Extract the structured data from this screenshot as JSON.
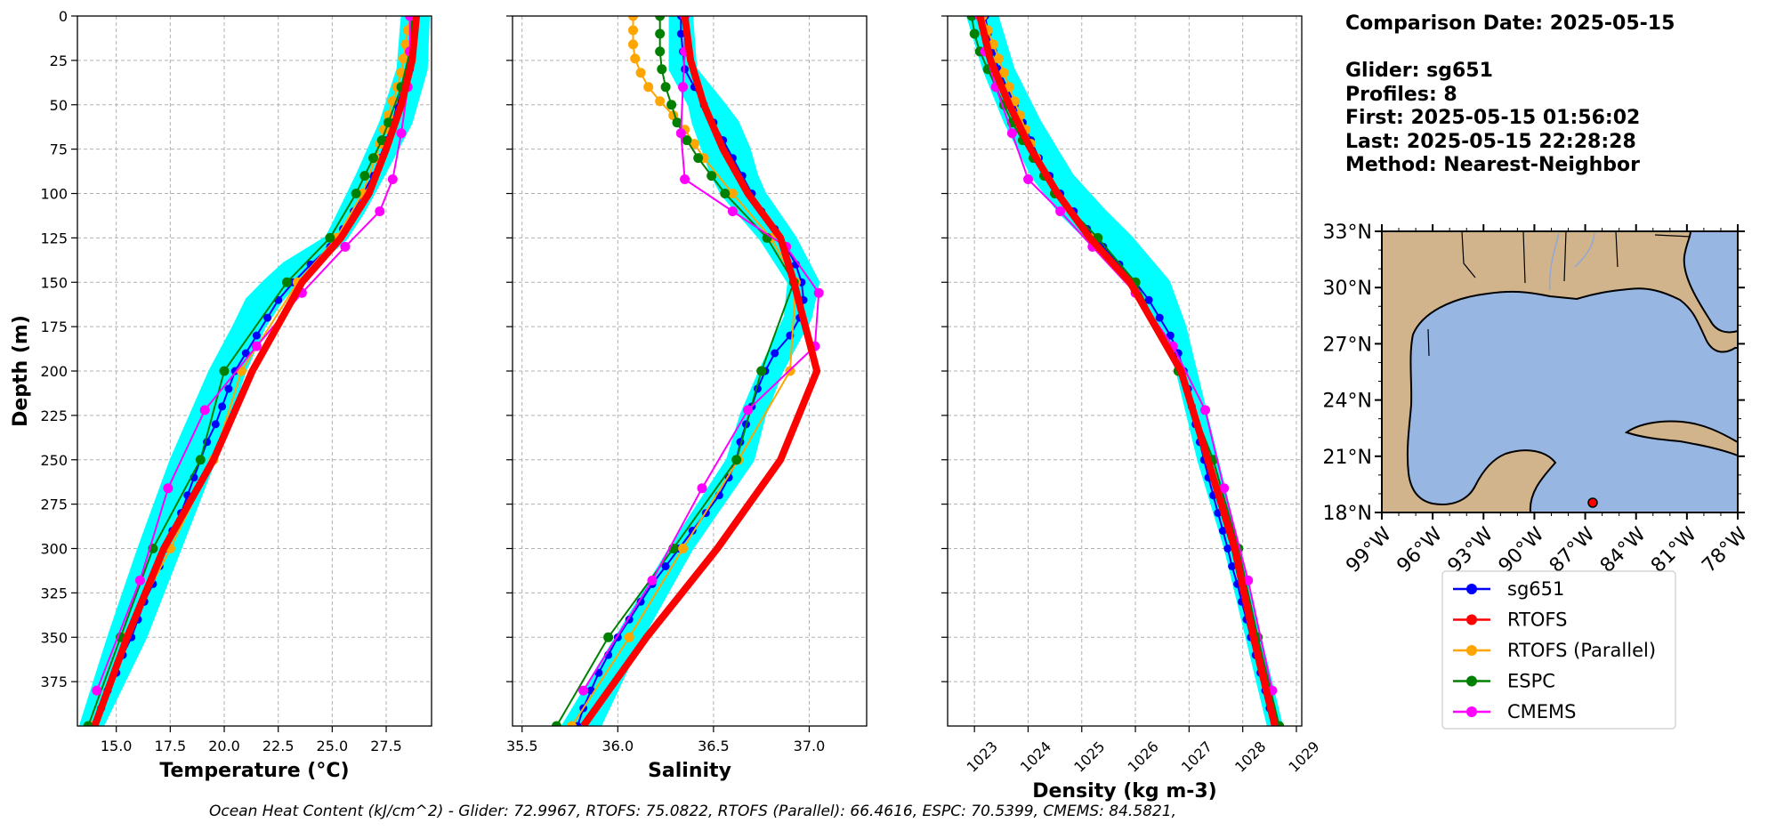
{
  "info": {
    "comparison_date": "Comparison Date: 2025-05-15",
    "glider": "Glider: sg651",
    "profiles": "Profiles: 8",
    "first": "First: 2025-05-15 01:56:02",
    "last": "Last: 2025-05-15 22:28:28",
    "method": "Method: Nearest-Neighbor"
  },
  "ohc_text": "Ocean Heat Content (kJ/cm^2) - Glider: 72.9967,  RTOFS: 75.0822,  RTOFS (Parallel): 66.4616,  ESPC: 70.5399,  CMEMS: 84.5821,",
  "map": {
    "lat_ticks": [
      "33°N",
      "30°N",
      "27°N",
      "24°N",
      "21°N",
      "18°N"
    ],
    "lon_ticks": [
      "99°W",
      "96°W",
      "93°W",
      "90°W",
      "87°W",
      "84°W",
      "81°W",
      "78°W"
    ],
    "land_color": "#d2b48c",
    "ocean_color": "#97b6e1"
  },
  "legend": [
    "sg651",
    "RTOFS",
    "RTOFS (Parallel)",
    "ESPC",
    "CMEMS"
  ],
  "chart_data": {
    "type": "line",
    "ylabel": "Depth (m)",
    "ylim": [
      400,
      0
    ],
    "yticks": [
      0,
      25,
      50,
      75,
      100,
      125,
      150,
      175,
      200,
      225,
      250,
      275,
      300,
      325,
      350,
      375
    ],
    "ytick_labels": [
      "0",
      "25",
      "50",
      "75",
      "100",
      "125",
      "150",
      "175",
      "200",
      "225",
      "250",
      "275",
      "300",
      "325",
      "350",
      "375"
    ],
    "grid": true,
    "colors": {
      "sg651": "#0000ff",
      "RTOFS": "#ff0000",
      "RTOFS (Parallel)": "#ffa500",
      "ESPC": "#008000",
      "CMEMS": "#ff00ff",
      "envelope": "#00ffff"
    },
    "panels": [
      {
        "xlabel": "Temperature",
        "xlabel_unit": "(°C)",
        "xlim": [
          13.2,
          29.6
        ],
        "xticks": [
          15.0,
          17.5,
          20.0,
          22.5,
          25.0,
          27.5
        ],
        "xtick_labels": [
          "15.0",
          "17.5",
          "20.0",
          "22.5",
          "25.0",
          "27.5"
        ],
        "envelope": {
          "depth": [
            0,
            30,
            60,
            90,
            110,
            125,
            140,
            150,
            160,
            175,
            200,
            250,
            300,
            350,
            400
          ],
          "low": [
            28.3,
            28.1,
            27.3,
            26.2,
            25.4,
            24.8,
            22.8,
            21.9,
            21.1,
            20.5,
            19.4,
            17.6,
            16.1,
            14.7,
            13.4
          ],
          "high": [
            29.4,
            29.3,
            28.6,
            27.3,
            26.4,
            25.6,
            24.2,
            23.3,
            22.6,
            21.8,
            20.9,
            19.5,
            17.9,
            16.3,
            14.3
          ]
        },
        "series": [
          {
            "name": "sg651",
            "depth": [
              0,
              10,
              20,
              30,
              40,
              50,
              60,
              70,
              80,
              90,
              100,
              110,
              120,
              130,
              140,
              150,
              160,
              170,
              180,
              190,
              200,
              210,
              220,
              230,
              240,
              250,
              260,
              270,
              280,
              290,
              300,
              310,
              320,
              330,
              340,
              350,
              360,
              370,
              380,
              390,
              400
            ],
            "values": [
              28.8,
              28.8,
              28.7,
              28.6,
              28.3,
              28.0,
              27.8,
              27.5,
              27.2,
              26.9,
              26.4,
              26.0,
              25.5,
              24.9,
              24.0,
              23.2,
              22.5,
              22.0,
              21.5,
              21.0,
              20.5,
              20.2,
              19.9,
              19.6,
              19.2,
              18.9,
              18.6,
              18.3,
              18.0,
              17.6,
              17.3,
              17.0,
              16.7,
              16.3,
              16.0,
              15.7,
              15.3,
              15.0,
              14.6,
              14.3,
              14.0
            ]
          },
          {
            "name": "RTOFS",
            "depth": [
              0,
              25,
              50,
              75,
              100,
              125,
              150,
              200,
              250,
              300,
              350,
              400
            ],
            "values": [
              28.9,
              28.7,
              28.2,
              27.5,
              26.7,
              25.4,
              23.6,
              21.3,
              19.5,
              17.2,
              15.5,
              14.0
            ]
          },
          {
            "name": "RTOFS (Parallel)",
            "depth": [
              0,
              8,
              16,
              24,
              32,
              40,
              48,
              56,
              64,
              72,
              80,
              100,
              125,
              150,
              200,
              250,
              300,
              350,
              400
            ],
            "values": [
              28.6,
              28.5,
              28.4,
              28.3,
              28.2,
              28.0,
              27.8,
              27.6,
              27.4,
              27.2,
              27.0,
              26.4,
              25.2,
              23.4,
              20.8,
              19.5,
              17.5,
              15.4,
              13.9
            ]
          },
          {
            "name": "ESPC",
            "depth": [
              0,
              20,
              40,
              60,
              70,
              80,
              90,
              100,
              125,
              150,
              200,
              250,
              300,
              350,
              400
            ],
            "values": [
              28.7,
              28.6,
              28.2,
              27.6,
              27.3,
              26.9,
              26.5,
              26.1,
              24.9,
              22.9,
              20.0,
              18.9,
              16.7,
              15.2,
              13.7
            ]
          },
          {
            "name": "CMEMS",
            "depth": [
              0,
              20,
              40,
              66,
              92,
              110,
              130,
              156,
              186,
              222,
              266,
              318,
              380
            ],
            "values": [
              28.6,
              28.6,
              28.5,
              28.2,
              27.8,
              27.2,
              25.6,
              23.6,
              21.5,
              19.1,
              17.4,
              16.1,
              14.1
            ]
          }
        ]
      },
      {
        "xlabel": "Salinity",
        "xlim": [
          35.45,
          37.3
        ],
        "xticks": [
          35.5,
          36.0,
          36.5,
          37.0
        ],
        "xtick_labels": [
          "35.5",
          "36.0",
          "36.5",
          "37.0"
        ],
        "envelope": {
          "depth": [
            0,
            30,
            50,
            60,
            75,
            90,
            100,
            125,
            150,
            170,
            200,
            225,
            250,
            300,
            350,
            400
          ],
          "low": [
            36.28,
            36.28,
            36.38,
            36.4,
            36.45,
            36.5,
            36.55,
            36.75,
            36.9,
            36.88,
            36.75,
            36.65,
            36.58,
            36.28,
            36.0,
            35.72
          ],
          "high": [
            36.38,
            36.4,
            36.55,
            36.62,
            36.68,
            36.72,
            36.76,
            36.92,
            37.04,
            37.0,
            36.85,
            36.76,
            36.7,
            36.38,
            36.12,
            35.9
          ]
        },
        "series": [
          {
            "name": "sg651",
            "depth": [
              0,
              10,
              20,
              30,
              40,
              50,
              60,
              70,
              80,
              90,
              100,
              110,
              120,
              130,
              140,
              150,
              160,
              170,
              180,
              190,
              200,
              210,
              220,
              230,
              240,
              250,
              260,
              270,
              280,
              290,
              300,
              310,
              320,
              330,
              340,
              350,
              360,
              370,
              380,
              390,
              400
            ],
            "values": [
              36.33,
              36.33,
              36.34,
              36.35,
              36.4,
              36.45,
              36.5,
              36.55,
              36.6,
              36.65,
              36.7,
              36.75,
              36.82,
              36.88,
              36.93,
              36.96,
              36.97,
              36.95,
              36.9,
              36.82,
              36.77,
              36.73,
              36.7,
              36.67,
              36.64,
              36.62,
              36.58,
              36.53,
              36.46,
              36.39,
              36.32,
              36.25,
              36.18,
              36.12,
              36.06,
              36.0,
              35.95,
              35.9,
              35.86,
              35.82,
              35.79
            ]
          },
          {
            "name": "RTOFS",
            "depth": [
              0,
              25,
              50,
              75,
              100,
              125,
              150,
              200,
              250,
              300,
              350,
              400
            ],
            "values": [
              36.35,
              36.38,
              36.45,
              36.55,
              36.68,
              36.85,
              36.92,
              37.04,
              36.85,
              36.52,
              36.15,
              35.82
            ]
          },
          {
            "name": "RTOFS (Parallel)",
            "depth": [
              0,
              8,
              16,
              24,
              32,
              40,
              48,
              56,
              64,
              72,
              80,
              100,
              125,
              150,
              200,
              250,
              300,
              350,
              400
            ],
            "values": [
              36.08,
              36.08,
              36.08,
              36.09,
              36.12,
              36.16,
              36.22,
              36.29,
              36.35,
              36.4,
              36.45,
              36.6,
              36.8,
              36.93,
              36.9,
              36.63,
              36.34,
              36.06,
              35.76
            ]
          },
          {
            "name": "ESPC",
            "depth": [
              0,
              10,
              20,
              30,
              40,
              50,
              60,
              70,
              80,
              90,
              100,
              125,
              150,
              200,
              250,
              300,
              350,
              400
            ],
            "values": [
              36.22,
              36.22,
              36.22,
              36.23,
              36.25,
              36.28,
              36.31,
              36.36,
              36.42,
              36.49,
              36.56,
              36.78,
              36.92,
              36.75,
              36.62,
              36.29,
              35.95,
              35.68
            ]
          },
          {
            "name": "CMEMS",
            "depth": [
              0,
              20,
              40,
              66,
              92,
              110,
              130,
              156,
              186,
              222,
              266,
              318,
              380
            ],
            "values": [
              36.35,
              36.35,
              36.34,
              36.33,
              36.35,
              36.6,
              36.88,
              37.05,
              37.03,
              36.68,
              36.44,
              36.18,
              35.82
            ]
          }
        ]
      },
      {
        "xlabel": "Density (kg m-3)",
        "xlim": [
          1022.5,
          1029.1
        ],
        "xticks": [
          1023,
          1024,
          1025,
          1026,
          1027,
          1028,
          1029
        ],
        "xtick_labels": [
          "1023",
          "1024",
          "1025",
          "1026",
          "1027",
          "1028",
          "1029"
        ],
        "envelope": {
          "depth": [
            0,
            30,
            60,
            90,
            110,
            125,
            150,
            175,
            200,
            250,
            300,
            350,
            400
          ],
          "low": [
            1022.9,
            1023.2,
            1023.6,
            1024.1,
            1024.6,
            1025.1,
            1025.9,
            1026.5,
            1026.8,
            1027.2,
            1027.7,
            1028.1,
            1028.5
          ],
          "high": [
            1023.4,
            1023.7,
            1024.2,
            1024.8,
            1025.4,
            1025.9,
            1026.6,
            1026.9,
            1027.1,
            1027.5,
            1027.9,
            1028.3,
            1028.7
          ]
        },
        "series": [
          {
            "name": "sg651",
            "depth": [
              0,
              10,
              20,
              30,
              40,
              50,
              60,
              70,
              80,
              90,
              100,
              110,
              120,
              130,
              140,
              150,
              160,
              170,
              180,
              190,
              200,
              210,
              220,
              230,
              240,
              250,
              260,
              270,
              280,
              290,
              300,
              310,
              320,
              330,
              340,
              350,
              360,
              370,
              380,
              390,
              400
            ],
            "values": [
              1023.2,
              1023.25,
              1023.35,
              1023.45,
              1023.6,
              1023.75,
              1023.9,
              1024.05,
              1024.2,
              1024.4,
              1024.6,
              1024.85,
              1025.1,
              1025.4,
              1025.7,
              1026.0,
              1026.25,
              1026.45,
              1026.65,
              1026.8,
              1026.9,
              1026.98,
              1027.05,
              1027.12,
              1027.2,
              1027.28,
              1027.36,
              1027.45,
              1027.54,
              1027.63,
              1027.72,
              1027.8,
              1027.9,
              1027.98,
              1028.07,
              1028.15,
              1028.24,
              1028.33,
              1028.42,
              1028.5,
              1028.6
            ]
          },
          {
            "name": "RTOFS",
            "depth": [
              0,
              25,
              50,
              75,
              100,
              125,
              150,
              200,
              250,
              300,
              350,
              400
            ],
            "values": [
              1023.1,
              1023.3,
              1023.65,
              1024.05,
              1024.55,
              1025.15,
              1025.9,
              1026.85,
              1027.35,
              1027.85,
              1028.2,
              1028.6
            ]
          },
          {
            "name": "RTOFS (Parallel)",
            "depth": [
              0,
              8,
              16,
              24,
              32,
              40,
              48,
              56,
              64,
              72,
              80,
              100,
              125,
              150,
              200,
              250,
              300,
              350,
              400
            ],
            "values": [
              1023.15,
              1023.25,
              1023.35,
              1023.45,
              1023.55,
              1023.65,
              1023.75,
              1023.85,
              1023.95,
              1024.05,
              1024.15,
              1024.5,
              1025.2,
              1025.95,
              1026.85,
              1027.4,
              1027.9,
              1028.25,
              1028.65
            ]
          },
          {
            "name": "ESPC",
            "depth": [
              0,
              10,
              20,
              30,
              40,
              50,
              60,
              70,
              80,
              90,
              100,
              125,
              150,
              200,
              250,
              300,
              350,
              400
            ],
            "values": [
              1022.95,
              1023.0,
              1023.1,
              1023.25,
              1023.4,
              1023.55,
              1023.7,
              1023.9,
              1024.1,
              1024.3,
              1024.5,
              1025.3,
              1026.0,
              1026.8,
              1027.45,
              1027.92,
              1028.28,
              1028.68
            ]
          },
          {
            "name": "CMEMS",
            "depth": [
              0,
              20,
              40,
              66,
              92,
              110,
              130,
              156,
              186,
              222,
              266,
              318,
              380
            ],
            "values": [
              1023.1,
              1023.2,
              1023.4,
              1023.7,
              1024.0,
              1024.6,
              1025.2,
              1026.0,
              1026.7,
              1027.3,
              1027.65,
              1028.1,
              1028.55
            ]
          }
        ]
      }
    ]
  }
}
